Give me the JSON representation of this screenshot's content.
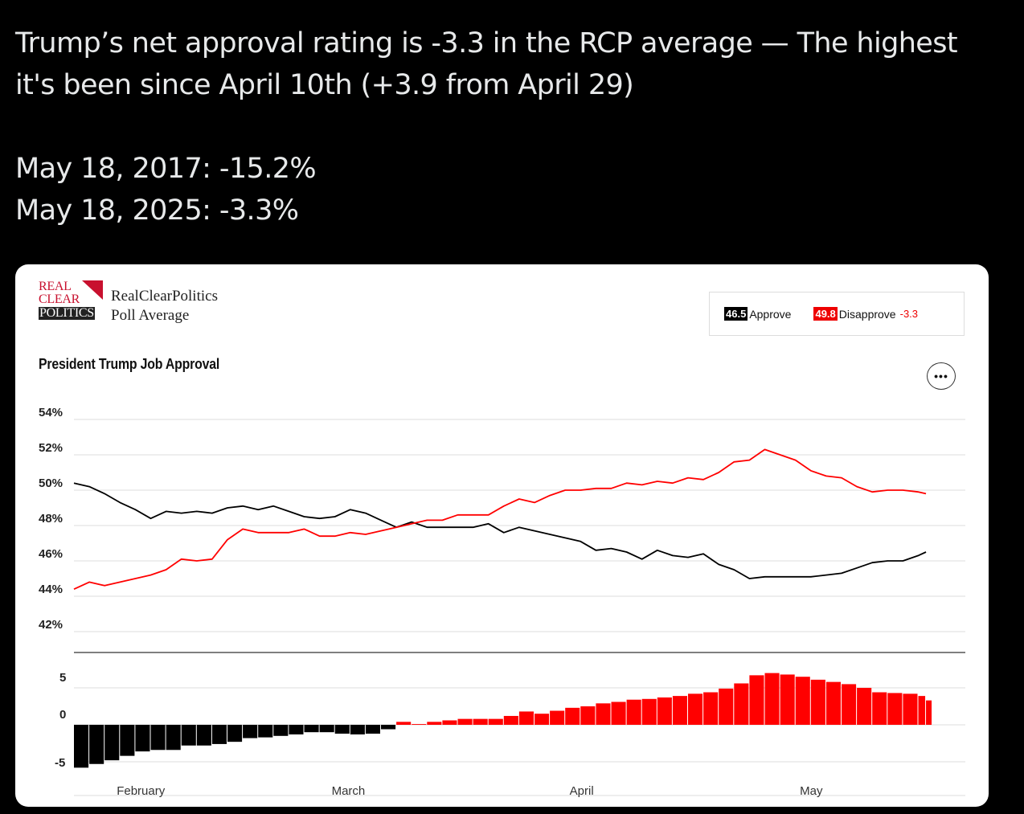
{
  "tweet": {
    "line1": "Trump’s net approval rating is -3.3 in the RCP average — The highest",
    "line2": "it's been since April 10th (+3.9 from April 29)",
    "line3": "May 18, 2017: -15.2%",
    "line4": "May 18, 2025: -3.3%"
  },
  "card": {
    "logo_lines": [
      "REAL",
      "CLEAR",
      "POLITICS"
    ],
    "source_line1": "RealClearPolitics",
    "source_line2": "Poll Average",
    "chart_title": "President Trump Job Approval",
    "more_button": "•••",
    "legend": {
      "approve_value": "46.5",
      "approve_label": "Approve",
      "disapprove_value": "49.8",
      "disapprove_label": "Disapprove",
      "net": "-3.3",
      "approve_color": "#000000",
      "disapprove_color": "#ff0000"
    }
  },
  "chart_data": [
    {
      "type": "line",
      "title": "President Trump Job Approval",
      "ylim": [
        42,
        54
      ],
      "y_ticks": [
        "54%",
        "52%",
        "50%",
        "48%",
        "46%",
        "44%",
        "42%"
      ],
      "x_ticks": [
        "February",
        "March",
        "April",
        "May"
      ],
      "x_tick_days": [
        0,
        28,
        59,
        89
      ],
      "grid": true,
      "legend": "top-right",
      "series": [
        {
          "name": "Approve",
          "color": "#000000",
          "x": [
            -4,
            -2,
            0,
            2,
            4,
            6,
            8,
            10,
            12,
            14,
            16,
            18,
            20,
            22,
            24,
            26,
            28,
            30,
            32,
            34,
            36,
            38,
            40,
            42,
            44,
            46,
            48,
            50,
            52,
            54,
            56,
            58,
            60,
            62,
            64,
            66,
            68,
            70,
            72,
            74,
            76,
            78,
            80,
            82,
            84,
            86,
            88,
            90,
            92,
            94,
            96,
            98,
            100,
            102,
            104,
            106,
            107
          ],
          "y": [
            50.4,
            50.2,
            49.8,
            49.3,
            48.9,
            48.4,
            48.8,
            48.7,
            48.8,
            48.7,
            49.0,
            49.1,
            48.9,
            49.1,
            48.8,
            48.5,
            48.4,
            48.5,
            48.9,
            48.7,
            48.3,
            47.9,
            48.2,
            47.9,
            47.9,
            47.9,
            47.9,
            48.1,
            47.6,
            47.9,
            47.7,
            47.5,
            47.3,
            47.1,
            46.6,
            46.7,
            46.5,
            46.1,
            46.6,
            46.3,
            46.2,
            46.4,
            45.8,
            45.5,
            45.0,
            45.1,
            45.1,
            45.1,
            45.1,
            45.2,
            45.3,
            45.6,
            45.9,
            46.0,
            46.0,
            46.3,
            46.5
          ]
        },
        {
          "name": "Disapprove",
          "color": "#ff0000",
          "x": [
            -4,
            -2,
            0,
            2,
            4,
            6,
            8,
            10,
            12,
            14,
            16,
            18,
            20,
            22,
            24,
            26,
            28,
            30,
            32,
            34,
            36,
            38,
            40,
            42,
            44,
            46,
            48,
            50,
            52,
            54,
            56,
            58,
            60,
            62,
            64,
            66,
            68,
            70,
            72,
            74,
            76,
            78,
            80,
            82,
            84,
            86,
            88,
            90,
            92,
            94,
            96,
            98,
            100,
            102,
            104,
            106,
            107
          ],
          "y": [
            44.4,
            44.8,
            44.6,
            44.8,
            45.0,
            45.2,
            45.5,
            46.1,
            46.0,
            46.1,
            47.2,
            47.8,
            47.6,
            47.6,
            47.6,
            47.8,
            47.4,
            47.4,
            47.6,
            47.5,
            47.7,
            47.9,
            48.1,
            48.3,
            48.3,
            48.6,
            48.6,
            48.6,
            49.1,
            49.5,
            49.3,
            49.7,
            50.0,
            50.0,
            50.1,
            50.1,
            50.4,
            50.3,
            50.5,
            50.4,
            50.7,
            50.6,
            51.0,
            51.6,
            51.7,
            52.3,
            52.0,
            51.7,
            51.1,
            50.8,
            50.7,
            50.2,
            49.9,
            50.0,
            50.0,
            49.9,
            49.8
          ]
        }
      ]
    },
    {
      "type": "bar",
      "title": "",
      "ylim": [
        -10,
        10
      ],
      "y_ticks": [
        "5",
        "0",
        "-5"
      ],
      "x_ticks": [
        "February",
        "March",
        "April",
        "May"
      ],
      "grid": true,
      "positive_color": "#ff0000",
      "negative_color": "#000000",
      "x": [
        -4,
        -2,
        0,
        2,
        4,
        6,
        8,
        10,
        12,
        14,
        16,
        18,
        20,
        22,
        24,
        26,
        28,
        30,
        32,
        34,
        36,
        38,
        40,
        42,
        44,
        46,
        48,
        50,
        52,
        54,
        56,
        58,
        60,
        62,
        64,
        66,
        68,
        70,
        72,
        74,
        76,
        78,
        80,
        82,
        84,
        86,
        88,
        90,
        92,
        94,
        96,
        98,
        100,
        102,
        104,
        106,
        107
      ],
      "values": [
        -5.8,
        -5.3,
        -4.8,
        -4.2,
        -3.6,
        -3.4,
        -3.4,
        -2.8,
        -2.8,
        -2.6,
        -2.3,
        -1.8,
        -1.7,
        -1.5,
        -1.3,
        -1.0,
        -1.0,
        -1.2,
        -1.3,
        -1.2,
        -0.6,
        0.4,
        0.1,
        0.4,
        0.6,
        0.8,
        0.8,
        0.8,
        1.2,
        1.8,
        1.5,
        1.9,
        2.3,
        2.5,
        2.9,
        3.1,
        3.4,
        3.5,
        3.7,
        3.9,
        4.2,
        4.4,
        4.9,
        5.6,
        6.7,
        7.0,
        6.8,
        6.5,
        6.1,
        5.8,
        5.5,
        5.0,
        4.4,
        4.3,
        4.2,
        3.9,
        3.3
      ]
    }
  ]
}
